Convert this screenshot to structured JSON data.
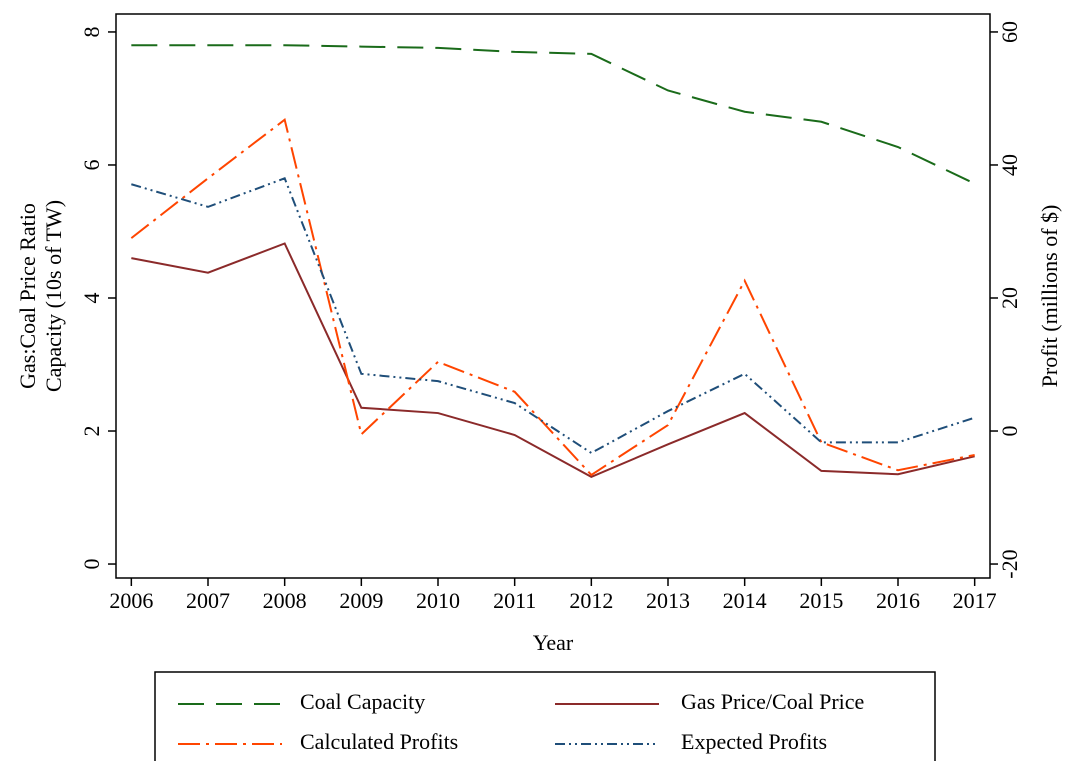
{
  "chart_data": {
    "type": "line",
    "x": [
      2006,
      2007,
      2008,
      2009,
      2010,
      2011,
      2012,
      2013,
      2014,
      2015,
      2016,
      2017
    ],
    "xlabel": "Year",
    "ylabel": [
      "Gas:Coal Price Ratio",
      "Capacity (10s of TW)"
    ],
    "y2label": "Profit (millions of $)",
    "xlim": [
      2005.8,
      2017.2
    ],
    "xticks": [
      2006,
      2007,
      2008,
      2009,
      2010,
      2011,
      2012,
      2013,
      2014,
      2015,
      2016,
      2017
    ],
    "ylim": [
      -0.21,
      8.27
    ],
    "yticks": [
      0,
      2,
      4,
      6,
      8
    ],
    "y2lim": [
      -22.1,
      62.7
    ],
    "y2ticks": [
      -20,
      0,
      20,
      40,
      60
    ],
    "legend": "bottom",
    "series": [
      {
        "name": "Coal Capacity",
        "color": "#1a6b1a",
        "dash": "26 12",
        "values": [
          7.8,
          7.8,
          7.8,
          7.78,
          7.76,
          7.7,
          7.67,
          7.12,
          6.8,
          6.65,
          6.27,
          5.72
        ]
      },
      {
        "name": "Gas Price/Coal Price",
        "color": "#8b2a2a",
        "dash": "",
        "values": [
          4.6,
          4.38,
          4.82,
          2.35,
          2.27,
          1.94,
          1.31,
          1.8,
          2.27,
          1.4,
          1.35,
          1.62
        ]
      },
      {
        "name": "Calculated Profits",
        "color": "#ff4500",
        "dash": "22 6 3 6",
        "axis": "y2",
        "values": [
          29,
          38,
          46.8,
          -0.5,
          10.4,
          5.9,
          -6.6,
          0.9,
          22.6,
          -1.7,
          -5.9,
          -3.6
        ]
      },
      {
        "name": "Expected Profits",
        "color": "#1f4e79",
        "dash": "10 4 2 4 2 4",
        "axis": "y2",
        "values": [
          37.1,
          33.7,
          38,
          8.6,
          7.5,
          4.2,
          -3.3,
          3,
          8.6,
          -1.7,
          -1.7,
          2
        ]
      }
    ]
  }
}
